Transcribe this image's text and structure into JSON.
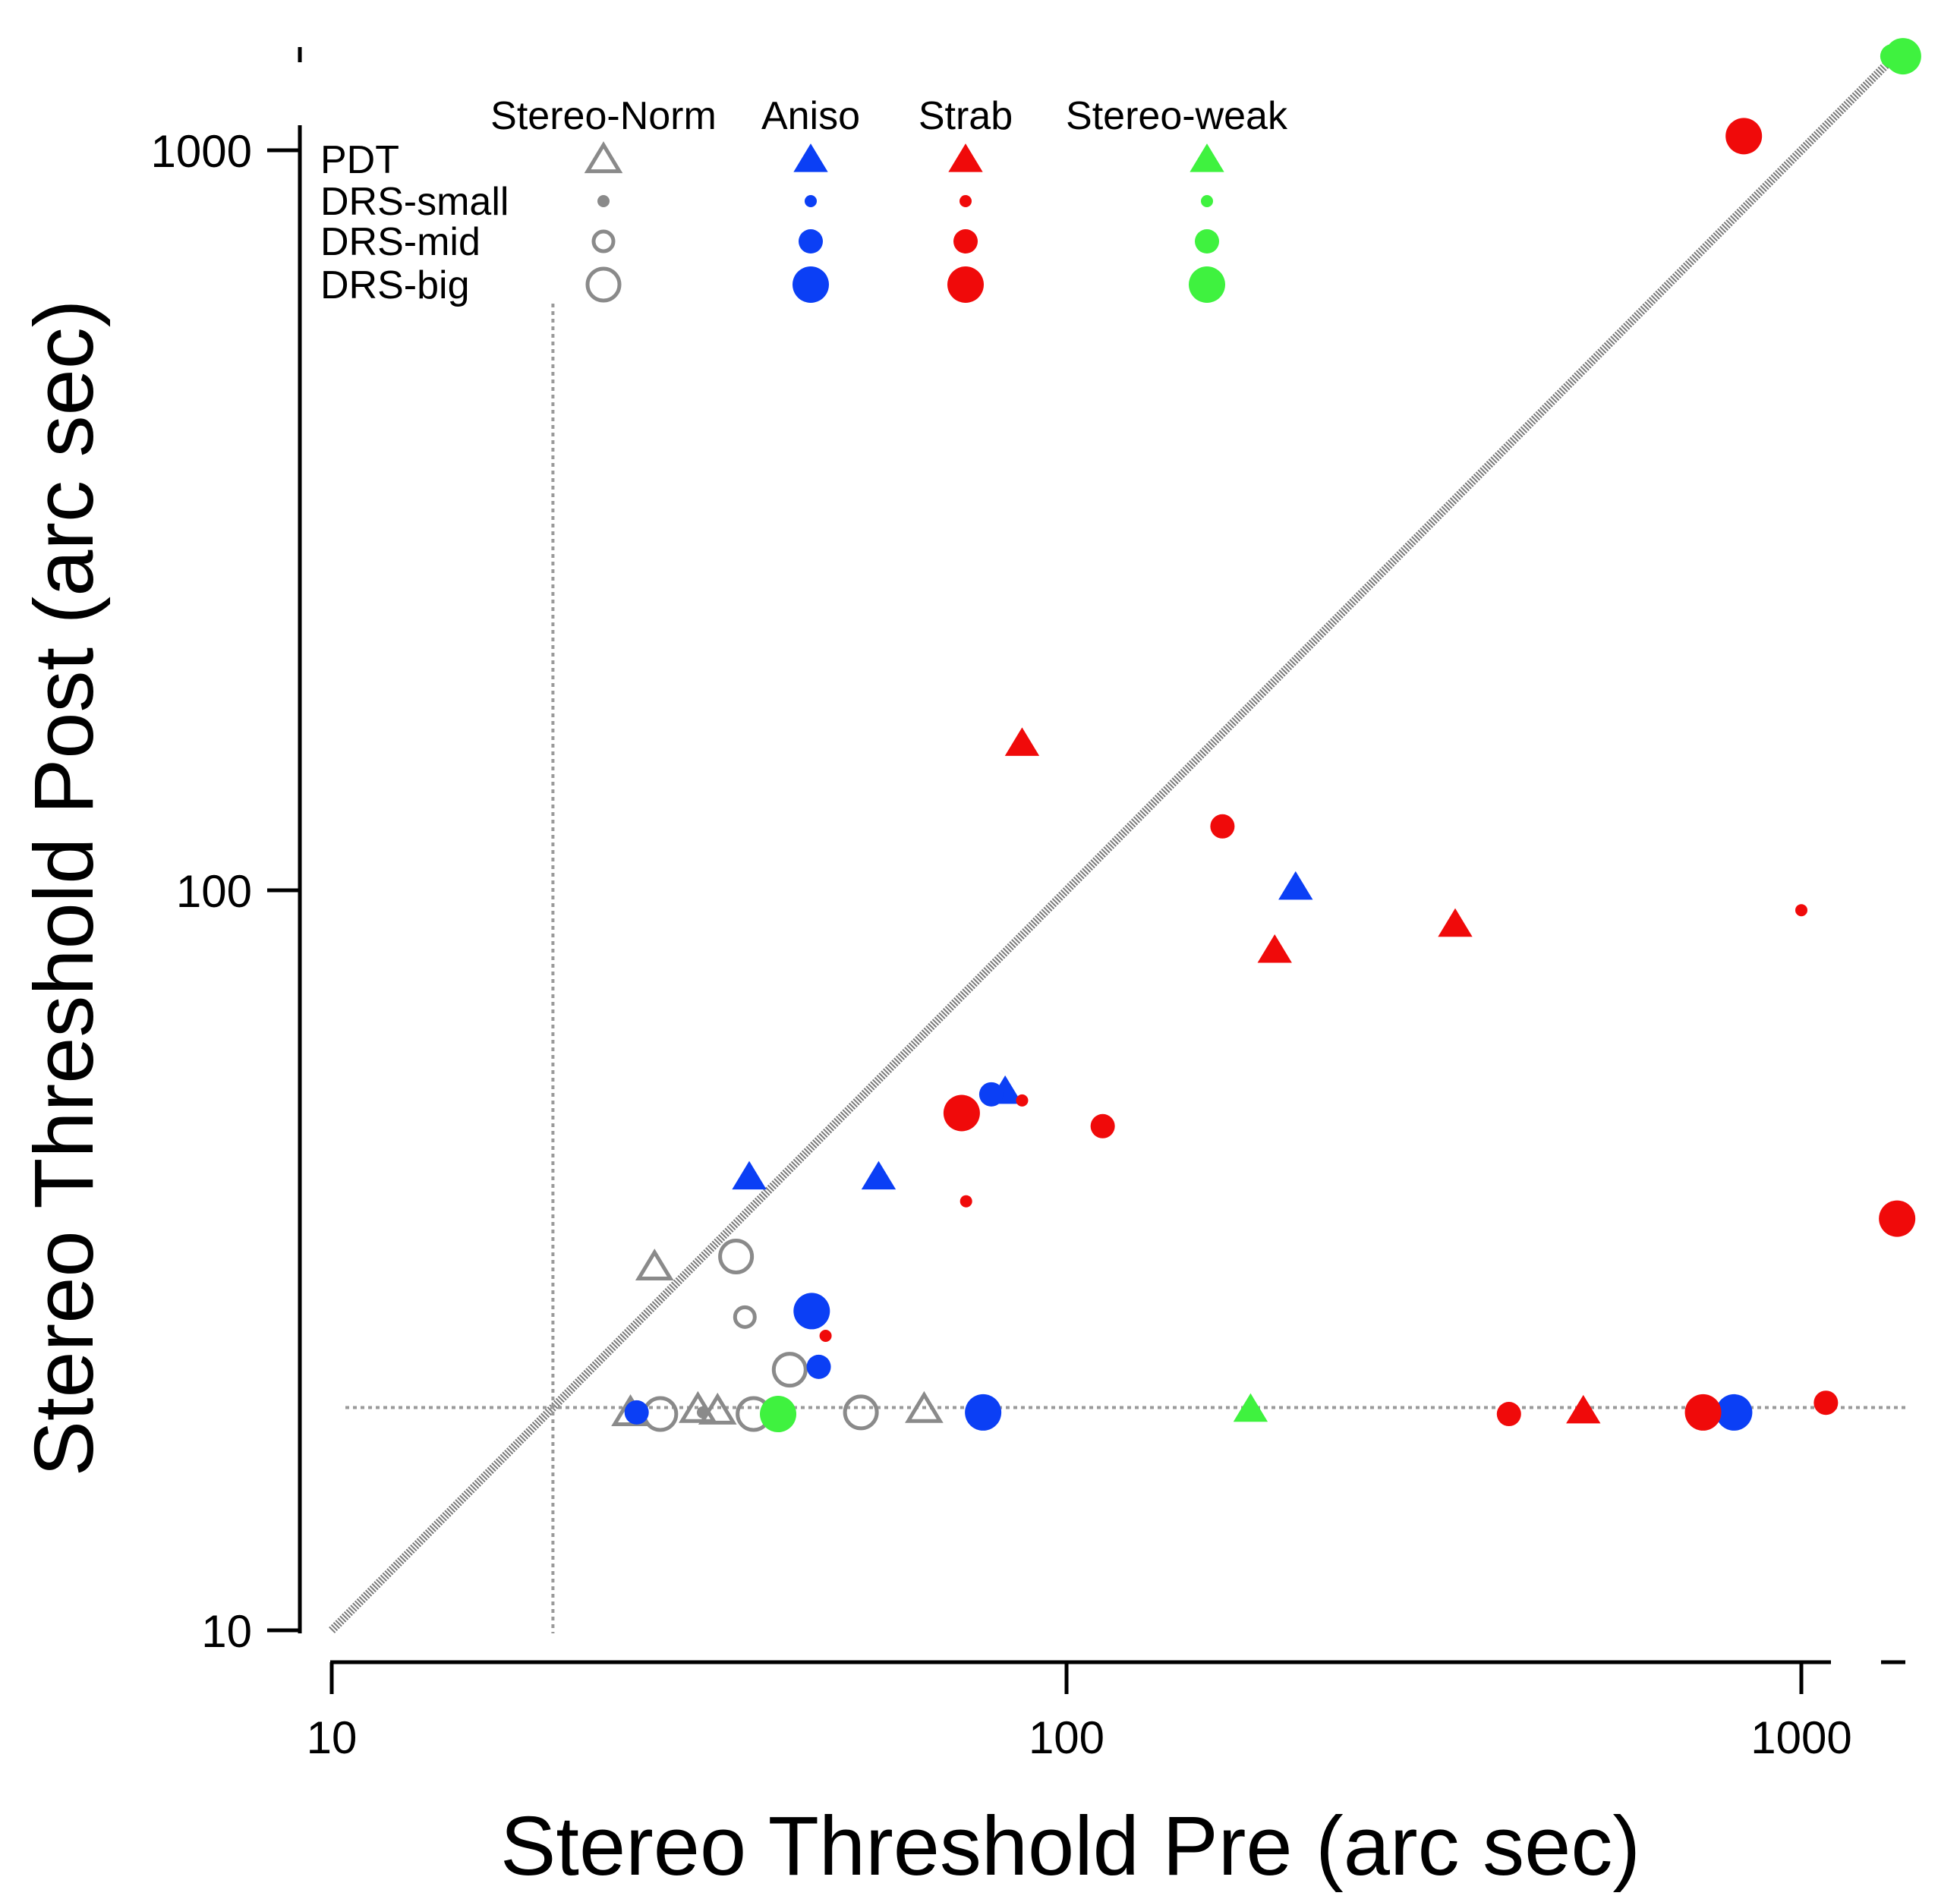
{
  "chart_data": {
    "type": "scatter",
    "title": "",
    "xlabel": "Stereo Threshold Pre (arc sec)",
    "ylabel": "Stereo Threshold Post (arc sec)",
    "x_scale": "log",
    "y_scale": "log",
    "xlim": [
      10,
      1400
    ],
    "ylim": [
      10,
      1400
    ],
    "x_ticks": [
      10,
      100,
      1000
    ],
    "y_ticks": [
      10,
      100,
      1000
    ],
    "x_tick_labels": [
      "10",
      "100",
      "1000"
    ],
    "y_tick_labels": [
      "10",
      "100",
      "1000"
    ],
    "grid": false,
    "reference_lines": {
      "identity_diagonal": true,
      "floor_y": 20,
      "floor_x": 20
    },
    "legend": {
      "placement": "top-left",
      "columns": [
        {
          "label": "Stereo-Norm",
          "color": "#8a8a8a",
          "filled": false
        },
        {
          "label": "Aniso",
          "color": "#0b3ff5",
          "filled": true
        },
        {
          "label": "Strab",
          "color": "#f00a0a",
          "filled": true
        },
        {
          "label": "Stereo-weak",
          "color": "#3ff23f",
          "filled": true
        }
      ],
      "rows": [
        {
          "label": "PDT",
          "marker": "triangle"
        },
        {
          "label": "DRS-small",
          "marker": "circle-small"
        },
        {
          "label": "DRS-mid",
          "marker": "circle-mid"
        },
        {
          "label": "DRS-big",
          "marker": "circle-big"
        }
      ]
    },
    "series": [
      {
        "group": "Stereo-Norm",
        "color": "#8a8a8a",
        "filled": false,
        "points": [
          {
            "x": 25.5,
            "y": 19.7,
            "m": "triangle"
          },
          {
            "x": 27.5,
            "y": 31,
            "m": "triangle"
          },
          {
            "x": 31.5,
            "y": 19.9,
            "m": "triangle"
          },
          {
            "x": 33.5,
            "y": 19.8,
            "m": "triangle"
          },
          {
            "x": 64,
            "y": 19.9,
            "m": "triangle"
          },
          {
            "x": 32,
            "y": 19.7,
            "m": "circle-small"
          },
          {
            "x": 36.5,
            "y": 26.5,
            "m": "circle-mid"
          },
          {
            "x": 28,
            "y": 19.6,
            "m": "circle-big"
          },
          {
            "x": 35.5,
            "y": 32,
            "m": "circle-big"
          },
          {
            "x": 37.5,
            "y": 19.6,
            "m": "circle-big"
          },
          {
            "x": 42,
            "y": 22.5,
            "m": "circle-big"
          },
          {
            "x": 52.5,
            "y": 19.7,
            "m": "circle-big"
          }
        ]
      },
      {
        "group": "Aniso",
        "color": "#0b3ff5",
        "filled": true,
        "points": [
          {
            "x": 37,
            "y": 41,
            "m": "triangle"
          },
          {
            "x": 55.5,
            "y": 41,
            "m": "triangle"
          },
          {
            "x": 82.5,
            "y": 53.5,
            "m": "triangle"
          },
          {
            "x": 205,
            "y": 101,
            "m": "triangle"
          },
          {
            "x": 79,
            "y": 53,
            "m": "circle-mid"
          },
          {
            "x": 46,
            "y": 22.7,
            "m": "circle-mid"
          },
          {
            "x": 26,
            "y": 19.7,
            "m": "circle-mid"
          },
          {
            "x": 45,
            "y": 27,
            "m": "circle-big"
          },
          {
            "x": 77,
            "y": 19.7,
            "m": "circle-big"
          },
          {
            "x": 810,
            "y": 19.7,
            "m": "circle-big"
          }
        ]
      },
      {
        "group": "Strab",
        "color": "#f00a0a",
        "filled": true,
        "points": [
          {
            "x": 87,
            "y": 158,
            "m": "triangle"
          },
          {
            "x": 192,
            "y": 83,
            "m": "triangle"
          },
          {
            "x": 338,
            "y": 90,
            "m": "triangle"
          },
          {
            "x": 505,
            "y": 19.8,
            "m": "triangle"
          },
          {
            "x": 47,
            "y": 25,
            "m": "circle-small"
          },
          {
            "x": 73,
            "y": 38,
            "m": "circle-small"
          },
          {
            "x": 87,
            "y": 52,
            "m": "circle-small"
          },
          {
            "x": 1000,
            "y": 94,
            "m": "circle-small"
          },
          {
            "x": 163,
            "y": 122,
            "m": "circle-mid"
          },
          {
            "x": 112,
            "y": 48,
            "m": "circle-mid"
          },
          {
            "x": 400,
            "y": 19.6,
            "m": "circle-mid"
          },
          {
            "x": 1080,
            "y": 20.3,
            "m": "circle-mid"
          },
          {
            "x": 72,
            "y": 50,
            "m": "circle-big"
          },
          {
            "x": 835,
            "y": 1045,
            "m": "circle-big"
          },
          {
            "x": 1350,
            "y": 36,
            "m": "circle-big"
          },
          {
            "x": 735,
            "y": 19.7,
            "m": "circle-big"
          }
        ]
      },
      {
        "group": "Stereo-weak",
        "color": "#3ff23f",
        "filled": true,
        "points": [
          {
            "x": 178,
            "y": 19.9,
            "m": "triangle"
          },
          {
            "x": 1330,
            "y": 1340,
            "m": "circle-mid"
          },
          {
            "x": 40.5,
            "y": 19.6,
            "m": "circle-big"
          },
          {
            "x": 1375,
            "y": 1340,
            "m": "circle-big"
          }
        ]
      }
    ]
  }
}
